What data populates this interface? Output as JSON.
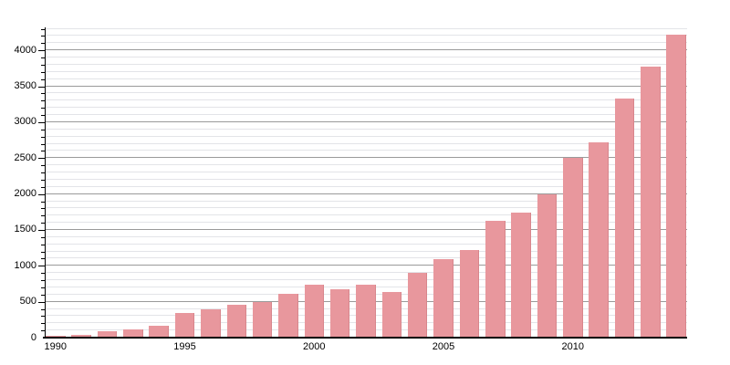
{
  "chart_data": {
    "type": "bar",
    "x": [
      1990,
      1991,
      1992,
      1993,
      1994,
      1995,
      1996,
      1997,
      1998,
      1999,
      2000,
      2001,
      2002,
      2003,
      2004,
      2005,
      2006,
      2007,
      2008,
      2009,
      2010,
      2011,
      2012,
      2013,
      2014
    ],
    "values": [
      25,
      45,
      85,
      115,
      160,
      345,
      400,
      460,
      490,
      610,
      735,
      670,
      740,
      640,
      900,
      1090,
      1220,
      1625,
      1745,
      2000,
      2500,
      2725,
      3330,
      3780,
      4220
    ],
    "title": "",
    "xlabel": "",
    "ylabel": "",
    "ylim": [
      0,
      4320
    ],
    "y_tick_labels": [
      "0",
      "500",
      "1000",
      "1500",
      "2000",
      "2500",
      "3000",
      "3500",
      "4000"
    ],
    "y_tick_values": [
      0,
      500,
      1000,
      1500,
      2000,
      2500,
      3000,
      3500,
      4000
    ],
    "y_minor_step": 100,
    "y_grid_max": 4300,
    "x_tick_labels": [
      "1990",
      "1995",
      "2000",
      "2005",
      "2010"
    ],
    "x_tick_years": [
      1990,
      1995,
      2000,
      2005,
      2010
    ],
    "grid": "on",
    "legend": "none",
    "colors": {
      "bar_fill": "#e8979d",
      "bar_edge": "#d8868c",
      "major_grid": "#9a9a9a",
      "minor_grid": "#e3e4e8",
      "axis": "#000000",
      "background": "#ffffff",
      "label_text": "#000000"
    }
  }
}
